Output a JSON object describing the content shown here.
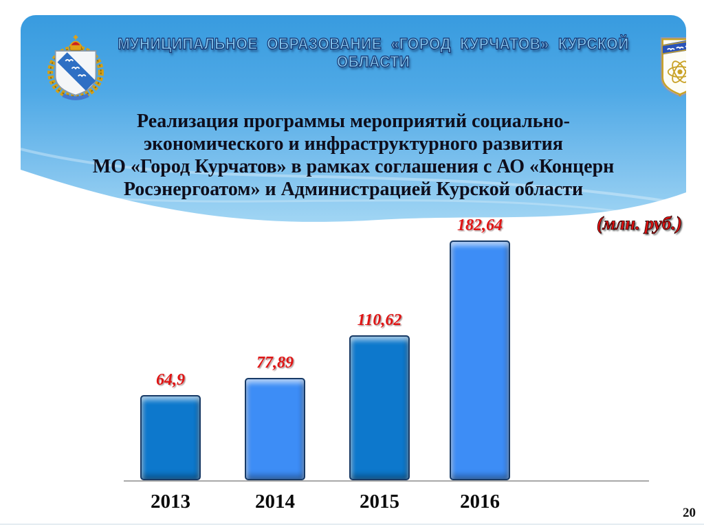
{
  "slide": {
    "header": "МУНИЦИПАЛЬНОЕ  ОБРАЗОВАНИЕ  «ГОРОД КУРЧАТОВ»  КУРСКОЙ  ОБЛАСТИ",
    "title_lines": [
      "Реализация программы мероприятий социально-",
      "экономического и инфраструктурного развития",
      "МО «Город Курчатов» в рамках соглашения с АО «Концерн",
      "Росэнергоатом» и Администрацией Курской области"
    ],
    "units_label": "(млн. руб.)",
    "page_number": "20"
  },
  "icons": {
    "left_emblem": "kursk-oblast-coat-of-arms",
    "right_emblem": "kurchatov-city-coat-of-arms"
  },
  "colors": {
    "sky_top": "#389bdf",
    "sky_bottom": "#a9daf5",
    "bar_dark": "#0d78cc",
    "bar_light": "#3d8df6",
    "value_red": "#e01414",
    "title_dark": "#0e0e1c"
  },
  "chart_data": {
    "type": "bar",
    "categories": [
      "2013",
      "2014",
      "2015",
      "2016"
    ],
    "values": [
      64.9,
      77.89,
      110.62,
      182.64
    ],
    "value_labels": [
      "64,9",
      "77,89",
      "110,62",
      "182,64"
    ],
    "title": "",
    "xlabel": "",
    "ylabel": "(млн. руб.)",
    "ylim": [
      0,
      190
    ],
    "grid": false,
    "legend": "none",
    "bar_colors": [
      "#0d78cc",
      "#3d8df6",
      "#0d78cc",
      "#3d8df6"
    ]
  }
}
